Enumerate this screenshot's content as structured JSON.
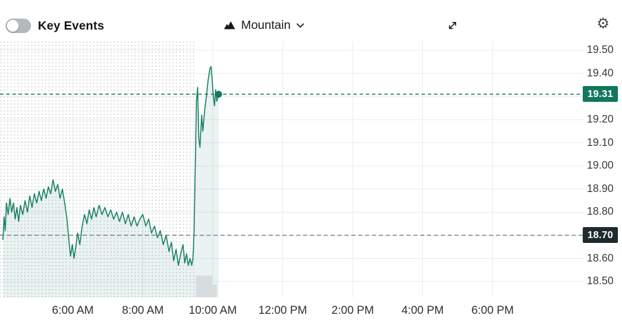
{
  "toolbar": {
    "key_events_label": "Key Events",
    "key_events_toggle_state": "off",
    "chart_style_label": "Mountain",
    "settings_glyph": "⚙"
  },
  "chart_data": {
    "type": "area",
    "title": "Intraday stock price chart (mountain style)",
    "line_color": "#1a8063",
    "fill_color": "rgba(20,125,95,0.09)",
    "grid_color": "#e9ebeb",
    "premarket_dot_color": "#cdd4d1",
    "premarket_end_min": 570,
    "volume_color": "#d9dcde",
    "x_unit": "minutes_since_midnight",
    "xlim": [
      235,
      1237
    ],
    "ylim": [
      18.432,
      19.539
    ],
    "xticks": [
      {
        "label": "6:00 AM",
        "minutes": 360
      },
      {
        "label": "8:00 AM",
        "minutes": 480
      },
      {
        "label": "10:00 AM",
        "minutes": 600
      },
      {
        "label": "12:00 PM",
        "minutes": 720
      },
      {
        "label": "2:00 PM",
        "minutes": 840
      },
      {
        "label": "4:00 PM",
        "minutes": 960
      },
      {
        "label": "6:00 PM",
        "minutes": 1080
      }
    ],
    "yticks": [
      19.5,
      19.4,
      19.2,
      19.1,
      19.0,
      18.9,
      18.8,
      18.6,
      18.5
    ],
    "grid_levels": [
      18.5,
      18.6,
      18.7,
      18.8,
      18.9,
      19.0,
      19.1,
      19.2,
      19.3,
      19.4,
      19.5
    ],
    "current_price": 19.31,
    "current_price_label": "19.31",
    "current_price_color": "#12775c",
    "previous_close": 18.7,
    "previous_close_label": "18.70",
    "previous_close_badge_color": "#1f2a2e",
    "previous_close_line_color": "#5f6a6e",
    "volume_bars": [
      {
        "start_min": 571,
        "end_min": 599,
        "height_frac": 0.085
      },
      {
        "start_min": 599,
        "end_min": 607,
        "height_frac": 0.05
      }
    ],
    "series": [
      {
        "name": "price",
        "points": [
          [
            240,
            18.68
          ],
          [
            242,
            18.78
          ],
          [
            244,
            18.72
          ],
          [
            246,
            18.84
          ],
          [
            249,
            18.79
          ],
          [
            252,
            18.86
          ],
          [
            255,
            18.8
          ],
          [
            258,
            18.84
          ],
          [
            261,
            18.77
          ],
          [
            264,
            18.82
          ],
          [
            267,
            18.76
          ],
          [
            270,
            18.83
          ],
          [
            274,
            18.79
          ],
          [
            278,
            18.85
          ],
          [
            282,
            18.8
          ],
          [
            286,
            18.87
          ],
          [
            290,
            18.82
          ],
          [
            294,
            18.88
          ],
          [
            298,
            18.84
          ],
          [
            302,
            18.89
          ],
          [
            306,
            18.85
          ],
          [
            310,
            18.9
          ],
          [
            314,
            18.86
          ],
          [
            318,
            18.91
          ],
          [
            322,
            18.88
          ],
          [
            326,
            18.94
          ],
          [
            330,
            18.89
          ],
          [
            334,
            18.92
          ],
          [
            338,
            18.86
          ],
          [
            342,
            18.9
          ],
          [
            346,
            18.84
          ],
          [
            350,
            18.77
          ],
          [
            353,
            18.68
          ],
          [
            356,
            18.61
          ],
          [
            359,
            18.66
          ],
          [
            362,
            18.6
          ],
          [
            365,
            18.65
          ],
          [
            368,
            18.71
          ],
          [
            372,
            18.66
          ],
          [
            376,
            18.74
          ],
          [
            380,
            18.79
          ],
          [
            384,
            18.75
          ],
          [
            388,
            18.81
          ],
          [
            392,
            18.77
          ],
          [
            396,
            18.82
          ],
          [
            400,
            18.78
          ],
          [
            405,
            18.83
          ],
          [
            410,
            18.79
          ],
          [
            415,
            18.82
          ],
          [
            420,
            18.78
          ],
          [
            425,
            18.81
          ],
          [
            430,
            18.77
          ],
          [
            435,
            18.8
          ],
          [
            440,
            18.76
          ],
          [
            445,
            18.8
          ],
          [
            450,
            18.75
          ],
          [
            455,
            18.79
          ],
          [
            460,
            18.74
          ],
          [
            465,
            18.78
          ],
          [
            470,
            18.74
          ],
          [
            475,
            18.77
          ],
          [
            480,
            18.79
          ],
          [
            485,
            18.74
          ],
          [
            490,
            18.77
          ],
          [
            495,
            18.71
          ],
          [
            500,
            18.74
          ],
          [
            505,
            18.69
          ],
          [
            510,
            18.72
          ],
          [
            515,
            18.66
          ],
          [
            520,
            18.7
          ],
          [
            525,
            18.63
          ],
          [
            529,
            18.67
          ],
          [
            533,
            18.59
          ],
          [
            537,
            18.64
          ],
          [
            541,
            18.57
          ],
          [
            545,
            18.62
          ],
          [
            549,
            18.66
          ],
          [
            552,
            18.58
          ],
          [
            555,
            18.62
          ],
          [
            558,
            18.57
          ],
          [
            561,
            18.6
          ],
          [
            564,
            18.57
          ],
          [
            566,
            18.6
          ],
          [
            568,
            18.72
          ],
          [
            570,
            19.0
          ],
          [
            572,
            19.28
          ],
          [
            574,
            19.34
          ],
          [
            576,
            19.12
          ],
          [
            578,
            19.08
          ],
          [
            581,
            19.22
          ],
          [
            583,
            19.15
          ],
          [
            586,
            19.24
          ],
          [
            589,
            19.3
          ],
          [
            592,
            19.37
          ],
          [
            595,
            19.42
          ],
          [
            597,
            19.43
          ],
          [
            599,
            19.37
          ],
          [
            601,
            19.3
          ],
          [
            603,
            19.26
          ],
          [
            605,
            19.33
          ],
          [
            607,
            19.28
          ],
          [
            610,
            19.31
          ]
        ]
      }
    ]
  }
}
